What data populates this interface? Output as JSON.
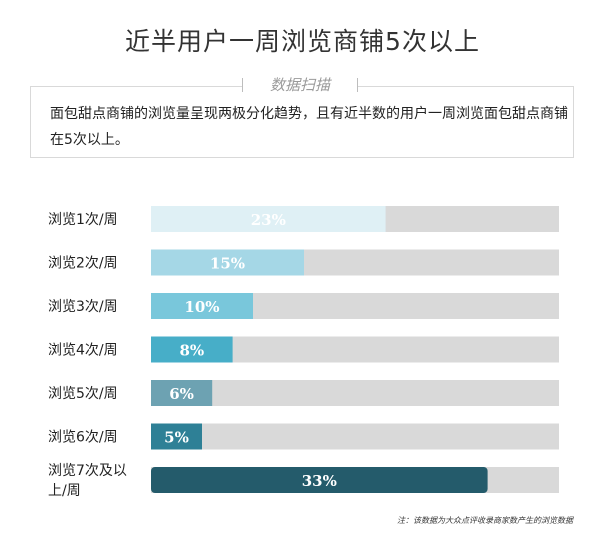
{
  "title": "近半用户一周浏览商铺5次以上",
  "box_label": "数据扫描",
  "summary": "面包甜点商铺的浏览量呈现两极分化趋势，且有近半数的用户一周浏览面包甜点商铺在5次以上。",
  "footnote": "注：该数据为大众点评收录商家数产生的浏览数据",
  "chart_data": {
    "type": "bar",
    "orientation": "horizontal",
    "title": "",
    "xlabel": "",
    "ylabel": "",
    "xlim": [
      0,
      40
    ],
    "grid": false,
    "categories": [
      "浏览1次/周",
      "浏览2次/周",
      "浏览3次/周",
      "浏览4次/周",
      "浏览5次/周",
      "浏览6次/周",
      "浏览7次及以上/周"
    ],
    "values": [
      23,
      15,
      10,
      8,
      6,
      5,
      33
    ],
    "value_labels": [
      "23%",
      "15%",
      "10%",
      "8%",
      "6%",
      "5%",
      "33%"
    ],
    "category_lines": [
      [
        "浏览1次/周"
      ],
      [
        "浏览2次/周"
      ],
      [
        "浏览3次/周"
      ],
      [
        "浏览4次/周"
      ],
      [
        "浏览5次/周"
      ],
      [
        "浏览6次/周"
      ],
      [
        "浏览7次及以",
        "上/周"
      ]
    ],
    "bar_colors": [
      "#dff0f5",
      "#a5d7e6",
      "#79c7db",
      "#47aec8",
      "#6da2b2",
      "#2e8096",
      "#245b6b"
    ],
    "track_color": "#d9d9d9"
  }
}
